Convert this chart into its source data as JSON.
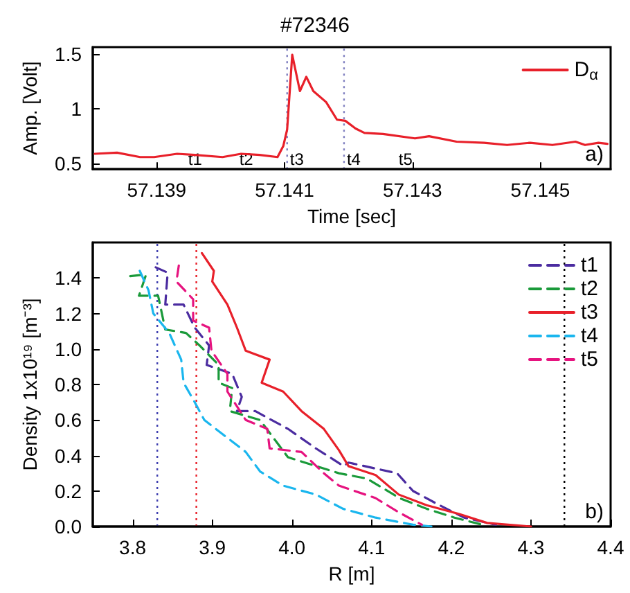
{
  "chart_data": [
    {
      "type": "line",
      "title": "#72346",
      "xlabel": "Time [sec]",
      "ylabel": "Amp. [Volt]",
      "legend": "top right",
      "xlim": [
        57.138,
        57.1461
      ],
      "ylim": [
        0.45,
        1.56
      ],
      "xticks": [
        57.139,
        57.141,
        57.143,
        57.145
      ],
      "yticks": [
        0.5,
        1,
        1.5
      ],
      "x": [
        57.13803,
        57.13838,
        57.13874,
        57.13896,
        57.13932,
        57.1396,
        57.14003,
        57.14032,
        57.14061,
        57.14089,
        57.14098,
        57.14104,
        57.14112,
        57.14124,
        57.14134,
        57.14145,
        57.14165,
        57.14182,
        57.14195,
        57.14211,
        57.14225,
        57.14254,
        57.14304,
        57.14326,
        57.14369,
        57.14412,
        57.14448,
        57.14484,
        57.14519,
        57.14555,
        57.1457,
        57.14591,
        57.14605
      ],
      "series": [
        {
          "name": "D$_{α}$",
          "color": "#e8202a",
          "values": [
            0.59,
            0.6,
            0.56,
            0.56,
            0.59,
            0.58,
            0.56,
            0.59,
            0.58,
            0.56,
            0.66,
            0.81,
            1.49,
            1.16,
            1.29,
            1.16,
            1.06,
            0.9,
            0.89,
            0.82,
            0.78,
            0.77,
            0.73,
            0.75,
            0.7,
            0.69,
            0.67,
            0.69,
            0.67,
            0.7,
            0.67,
            0.69,
            0.68
          ]
        }
      ],
      "ref_lines": [
        {
          "axis": "x",
          "value": 57.14104,
          "color": "#8080c0",
          "line_style": "dotted",
          "label": "t3"
        },
        {
          "axis": "x",
          "value": 57.14193,
          "color": "#8080c0",
          "line_style": "dotted",
          "label": "t4"
        }
      ],
      "annotations": [
        {
          "text": "t1",
          "x": 57.1396
        },
        {
          "text": "t2",
          "x": 57.1404
        },
        "t5",
        "a)"
      ]
    },
    {
      "type": "line",
      "xlabel": "R [m]",
      "ylabel": "Density 1x10¹⁹ [m⁻³]",
      "legend": "top right",
      "xlim": [
        3.75,
        4.4
      ],
      "ylim": [
        0,
        1.6
      ],
      "xticks": [
        3.8,
        3.9,
        {
          "value": 4,
          "label": "4.0"
        },
        4.1,
        4.2,
        4.3,
        4.4
      ],
      "yticks": [
        {
          "value": 0,
          "label": "0.0"
        },
        0.2,
        0.4,
        0.6,
        0.8,
        {
          "value": 1,
          "label": "1.0"
        },
        1.2,
        1.4
      ],
      "series": [
        {
          "name": "t1",
          "color": "#4b2ca0",
          "line_style": "dashed",
          "x": [
            3.829,
            3.844,
            3.841,
            3.864,
            3.878,
            3.896,
            3.893,
            3.925,
            3.937,
            3.931,
            3.954,
            3.995,
            4.03,
            4.065,
            4.071,
            4.132,
            4.152,
            4.181,
            4.216,
            4.256
          ],
          "values": [
            1.46,
            1.43,
            1.25,
            1.25,
            1.12,
            1.02,
            0.91,
            0.86,
            0.73,
            0.65,
            0.65,
            0.55,
            0.44,
            0.34,
            0.36,
            0.3,
            0.2,
            0.13,
            0.05,
            0.01
          ]
        },
        {
          "name": "t2",
          "color": "#1a9a3a",
          "line_style": "dashed",
          "x": [
            3.797,
            3.817,
            3.808,
            3.832,
            3.841,
            3.867,
            3.884,
            3.908,
            3.908,
            3.925,
            3.922,
            3.96,
            3.995,
            4.059,
            4.094,
            4.135,
            4.169,
            4.204,
            4.239
          ],
          "values": [
            1.41,
            1.42,
            1.3,
            1.3,
            1.11,
            1.09,
            1.02,
            0.91,
            0.81,
            0.78,
            0.65,
            0.6,
            0.39,
            0.3,
            0.27,
            0.16,
            0.1,
            0.05,
            0.01
          ]
        },
        {
          "name": "t3",
          "color": "#e8202a",
          "line_style": "solid",
          "x": [
            3.887,
            3.902,
            3.9,
            3.919,
            3.931,
            3.942,
            3.972,
            3.962,
            3.989,
            4.012,
            4.04,
            4.059,
            4.071,
            4.105,
            4.134,
            4.169,
            4.21,
            4.245,
            4.3
          ],
          "values": [
            1.54,
            1.44,
            1.38,
            1.25,
            1.12,
            0.99,
            0.94,
            0.81,
            0.76,
            0.65,
            0.55,
            0.43,
            0.34,
            0.29,
            0.18,
            0.12,
            0.07,
            0.02,
            0
          ]
        },
        {
          "name": "t4",
          "color": "#1ab6ee",
          "line_style": "dashed",
          "x": [
            3.809,
            3.82,
            3.826,
            3.846,
            3.861,
            3.864,
            3.878,
            3.89,
            3.913,
            3.942,
            3.96,
            3.989,
            4.03,
            4.064,
            4.105,
            4.152,
            4.175
          ],
          "values": [
            1.44,
            1.33,
            1.2,
            1.09,
            0.94,
            0.81,
            0.7,
            0.6,
            0.52,
            0.42,
            0.31,
            0.23,
            0.18,
            0.1,
            0.05,
            0.01,
            0
          ]
        },
        {
          "name": "t5",
          "color": "#e6137f",
          "line_style": "dashed",
          "x": [
            3.858,
            3.855,
            3.876,
            3.876,
            3.896,
            3.899,
            3.919,
            3.919,
            3.942,
            3.969,
            3.972,
            4.012,
            4.04,
            4.059,
            4.105,
            4.134,
            4.163
          ],
          "values": [
            1.47,
            1.38,
            1.28,
            1.16,
            1.12,
            0.99,
            0.86,
            0.76,
            0.6,
            0.55,
            0.44,
            0.42,
            0.3,
            0.23,
            0.16,
            0.08,
            0.01
          ]
        }
      ],
      "ref_lines": [
        {
          "axis": "x",
          "value": 3.831,
          "color": "#4040b0",
          "line_style": "dotted"
        },
        {
          "axis": "x",
          "value": 3.88,
          "color": "#e8202a",
          "line_style": "dotted"
        },
        {
          "axis": "x",
          "value": 4.342,
          "color": "#000000",
          "line_style": "dotted"
        }
      ],
      "annotations": [
        "b)"
      ]
    }
  ]
}
